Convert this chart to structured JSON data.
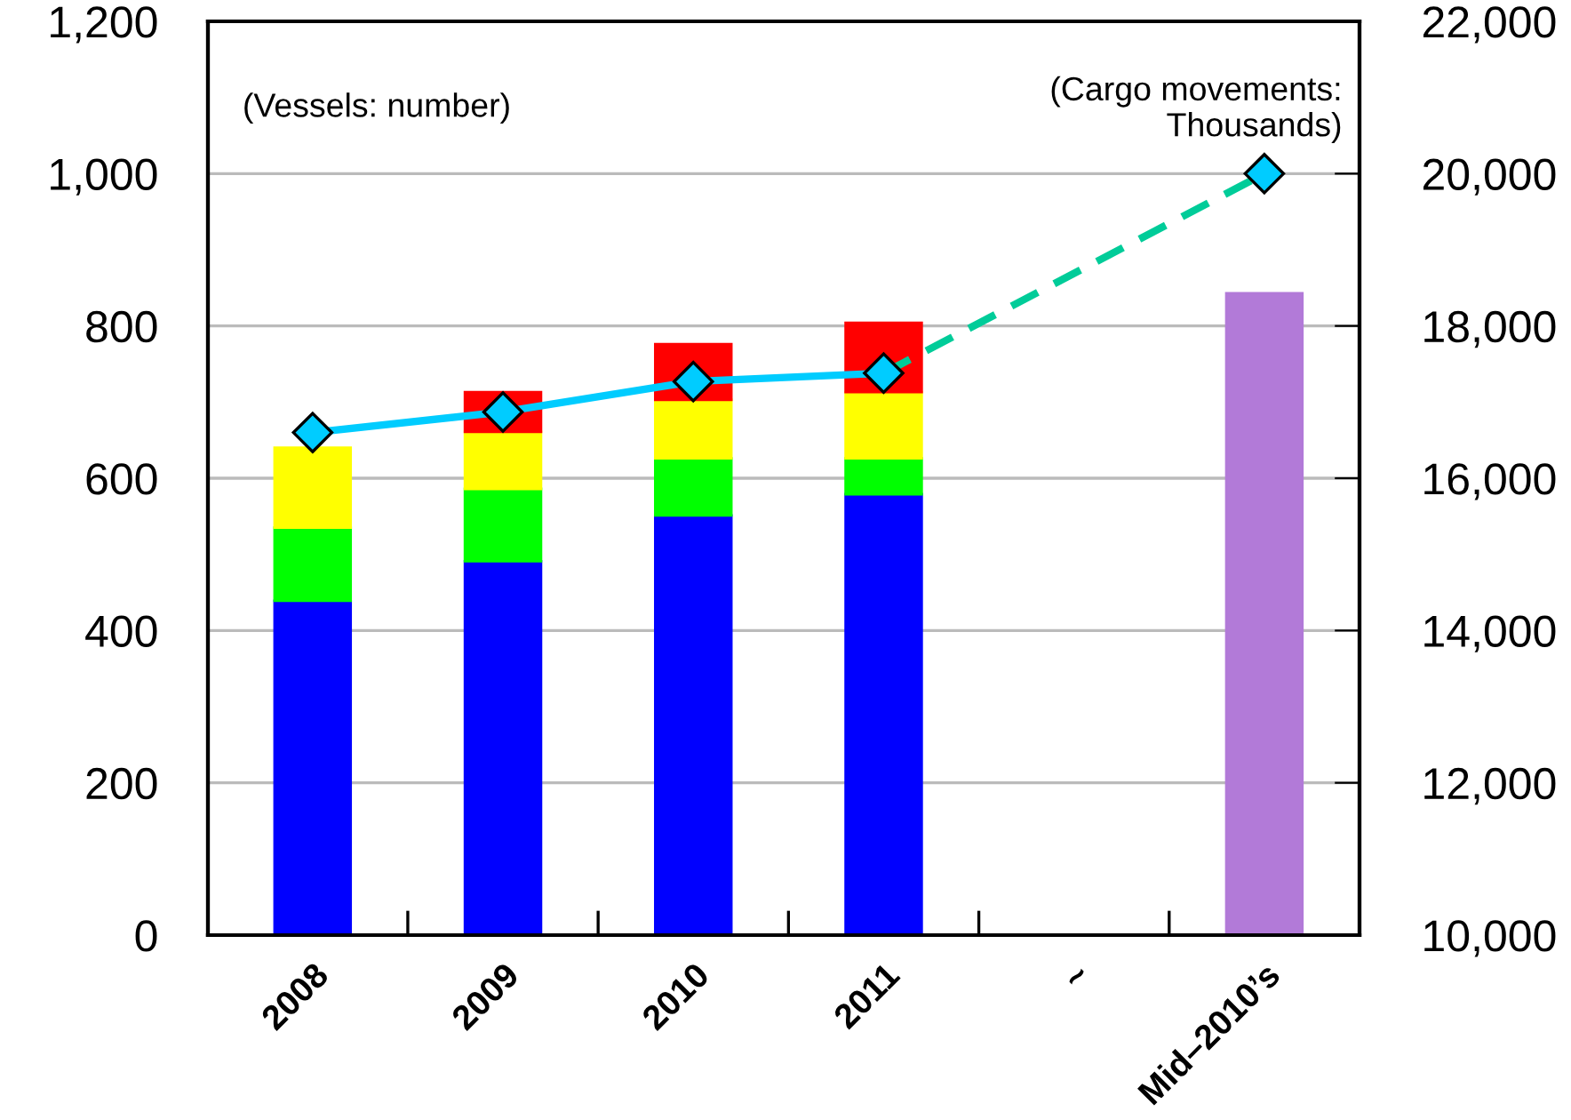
{
  "chart_data": {
    "type": "bar",
    "stacked": true,
    "categories": [
      "2008",
      "2009",
      "2010",
      "2011",
      "~",
      "Mid–2010’s"
    ],
    "series": [
      {
        "color": "#0000ff",
        "values": [
          439,
          491,
          551,
          579,
          null,
          null
        ]
      },
      {
        "color": "#00ff00",
        "values": [
          96,
          95,
          75,
          47,
          null,
          null
        ]
      },
      {
        "color": "#ffff00",
        "values": [
          105,
          75,
          77,
          87,
          null,
          null
        ]
      },
      {
        "color": "#ff0000",
        "values": [
          null,
          52,
          73,
          91,
          null,
          null
        ]
      },
      {
        "color": "#b27ad8",
        "values": [
          null,
          null,
          null,
          null,
          null,
          843
        ]
      },
      {
        "type": "line",
        "axis": "y2",
        "color": "#00ccff",
        "marker": "diamond",
        "line_style": "solid",
        "values": [
          16600,
          16870,
          17270,
          17380,
          null,
          20000
        ]
      },
      {
        "type": "line",
        "axis": "y2",
        "color": "#00cc99",
        "line_style": "dashed",
        "values": [
          null,
          null,
          null,
          17380,
          null,
          20000
        ]
      }
    ],
    "ylim": [
      0,
      1200
    ],
    "yticks": [
      {
        "value": 0,
        "label": "0"
      },
      {
        "value": 200,
        "label": "200"
      },
      {
        "value": 400,
        "label": "400"
      },
      {
        "value": 600,
        "label": "600"
      },
      {
        "value": 800,
        "label": "800"
      },
      {
        "value": 1000,
        "label": "1,000"
      },
      {
        "value": 1200,
        "label": "1,200"
      }
    ],
    "y2lim": [
      10000,
      22000
    ],
    "y2ticks": [
      {
        "value": 10000,
        "label": "10,000"
      },
      {
        "value": 12000,
        "label": "12,000"
      },
      {
        "value": 14000,
        "label": "14,000"
      },
      {
        "value": 16000,
        "label": "16,000"
      },
      {
        "value": 18000,
        "label": "18,000"
      },
      {
        "value": 20000,
        "label": "20,000"
      },
      {
        "value": 22000,
        "label": "22,000"
      }
    ],
    "grid": "y",
    "annotations": [
      "(Vessels: number)",
      "(Cargo movements:\nThousands)"
    ]
  }
}
